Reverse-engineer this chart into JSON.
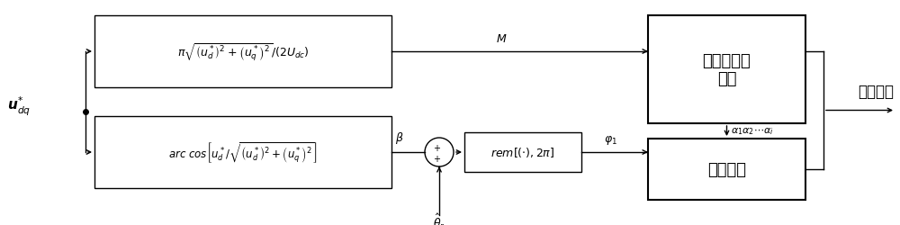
{
  "bg_color": "#ffffff",
  "line_color": "#000000",
  "box_color": "#ffffff",
  "box_edge": "#000000",
  "input_label": "$\\boldsymbol{u}_{dq}^{*}$",
  "box1_formula": "$\\pi\\sqrt{\\left(u_d^*\\right)^2+\\left(u_q^*\\right)^2}/(2U_{dc})$",
  "box2_formula": "$arc\\ cos\\left[u_d^*/\\sqrt{\\left(u_d^*\\right)^2+\\left(u_q^*\\right)^2}\\right]$",
  "box3_line1": "开关角曲线",
  "box3_line2": "拟合",
  "box4_label": "脉冲重构",
  "box5_formula": "$rem\\left[(\\cdot),2\\pi\\right]$",
  "output_label": "输出脉冲",
  "label_M": "$M$",
  "label_beta": "$\\beta$",
  "label_phi1": "$\\varphi_1$",
  "label_alpha": "$\\alpha_1\\alpha_2\\cdots\\alpha_i$",
  "label_theta": "$\\hat{\\theta}_r$",
  "plus_sign": "$+$",
  "fig_width": 10.0,
  "fig_height": 2.51,
  "dpi": 100
}
